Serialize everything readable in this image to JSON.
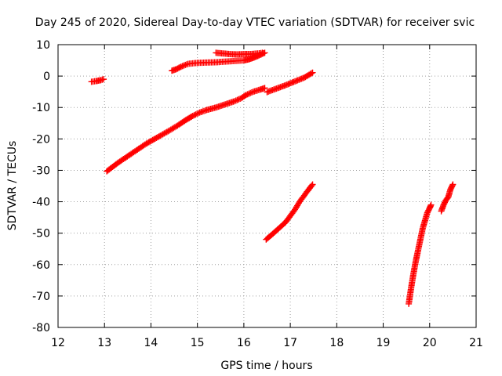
{
  "chart_data": {
    "type": "scatter",
    "title": "Day 245 of 2020, Sidereal Day-to-day VTEC variation (SDTVAR) for receiver svic",
    "xlabel": "GPS time / hours",
    "ylabel": "SDTVAR / TECUs",
    "xlim": [
      12,
      21
    ],
    "ylim": [
      -80,
      10
    ],
    "x_ticks": [
      12,
      13,
      14,
      15,
      16,
      17,
      18,
      19,
      20,
      21
    ],
    "y_ticks": [
      10,
      0,
      -10,
      -20,
      -30,
      -40,
      -50,
      -60,
      -70,
      -80
    ],
    "grid": true,
    "marker": "plus",
    "color": "#ff0000",
    "series": [
      {
        "points": [
          [
            12.72,
            -1.8
          ],
          [
            12.82,
            -1.6
          ],
          [
            12.92,
            -1.3
          ],
          [
            12.98,
            -1.0
          ]
        ]
      },
      {
        "points": [
          [
            13.05,
            -30.3
          ],
          [
            13.3,
            -27.5
          ],
          [
            13.6,
            -24.5
          ],
          [
            13.9,
            -21.5
          ],
          [
            14.2,
            -19.0
          ],
          [
            14.4,
            -17.3
          ],
          [
            14.6,
            -15.5
          ],
          [
            14.75,
            -14.0
          ],
          [
            14.9,
            -12.7
          ],
          [
            15.05,
            -11.6
          ],
          [
            15.2,
            -10.8
          ],
          [
            15.4,
            -10.0
          ],
          [
            15.6,
            -9.0
          ],
          [
            15.8,
            -8.0
          ],
          [
            15.95,
            -7.0
          ],
          [
            16.05,
            -6.0
          ],
          [
            16.2,
            -5.0
          ],
          [
            16.35,
            -4.3
          ],
          [
            16.45,
            -3.8
          ]
        ]
      },
      {
        "points": [
          [
            16.5,
            -5.1
          ],
          [
            16.7,
            -4.0
          ],
          [
            16.9,
            -2.9
          ],
          [
            17.1,
            -1.7
          ],
          [
            17.3,
            -0.5
          ],
          [
            17.48,
            1.1
          ]
        ]
      },
      {
        "points": [
          [
            14.45,
            1.7
          ],
          [
            14.55,
            2.2
          ],
          [
            14.65,
            3.0
          ],
          [
            14.8,
            3.9
          ],
          [
            15.0,
            4.2
          ],
          [
            15.2,
            4.3
          ],
          [
            15.4,
            4.4
          ],
          [
            15.6,
            4.6
          ],
          [
            15.8,
            4.8
          ],
          [
            16.0,
            5.0
          ],
          [
            16.1,
            5.3
          ],
          [
            16.2,
            5.8
          ],
          [
            16.3,
            6.4
          ],
          [
            16.4,
            7.1
          ],
          [
            16.45,
            7.4
          ]
        ]
      },
      {
        "points": [
          [
            15.4,
            7.4
          ],
          [
            15.55,
            7.2
          ],
          [
            15.7,
            7.0
          ],
          [
            15.85,
            6.9
          ],
          [
            16.0,
            7.0
          ],
          [
            16.15,
            7.0
          ],
          [
            16.3,
            7.2
          ],
          [
            16.4,
            7.4
          ]
        ]
      },
      {
        "points": [
          [
            16.48,
            -52.0
          ],
          [
            16.6,
            -50.5
          ],
          [
            16.75,
            -48.5
          ],
          [
            16.9,
            -46.5
          ],
          [
            17.0,
            -44.5
          ],
          [
            17.1,
            -42.5
          ],
          [
            17.2,
            -40.0
          ],
          [
            17.3,
            -38.0
          ],
          [
            17.4,
            -36.0
          ],
          [
            17.48,
            -34.5
          ]
        ]
      },
      {
        "points": [
          [
            19.55,
            -72.5
          ],
          [
            19.6,
            -67.5
          ],
          [
            19.65,
            -63.0
          ],
          [
            19.7,
            -59.0
          ],
          [
            19.75,
            -55.5
          ],
          [
            19.8,
            -52.0
          ],
          [
            19.85,
            -48.5
          ],
          [
            19.9,
            -46.0
          ],
          [
            19.95,
            -43.5
          ],
          [
            20.0,
            -42.0
          ],
          [
            20.03,
            -41.0
          ]
        ]
      },
      {
        "points": [
          [
            20.25,
            -43.0
          ],
          [
            20.3,
            -41.0
          ],
          [
            20.35,
            -39.5
          ],
          [
            20.4,
            -38.5
          ],
          [
            20.45,
            -36.0
          ],
          [
            20.5,
            -34.5
          ]
        ]
      }
    ]
  }
}
